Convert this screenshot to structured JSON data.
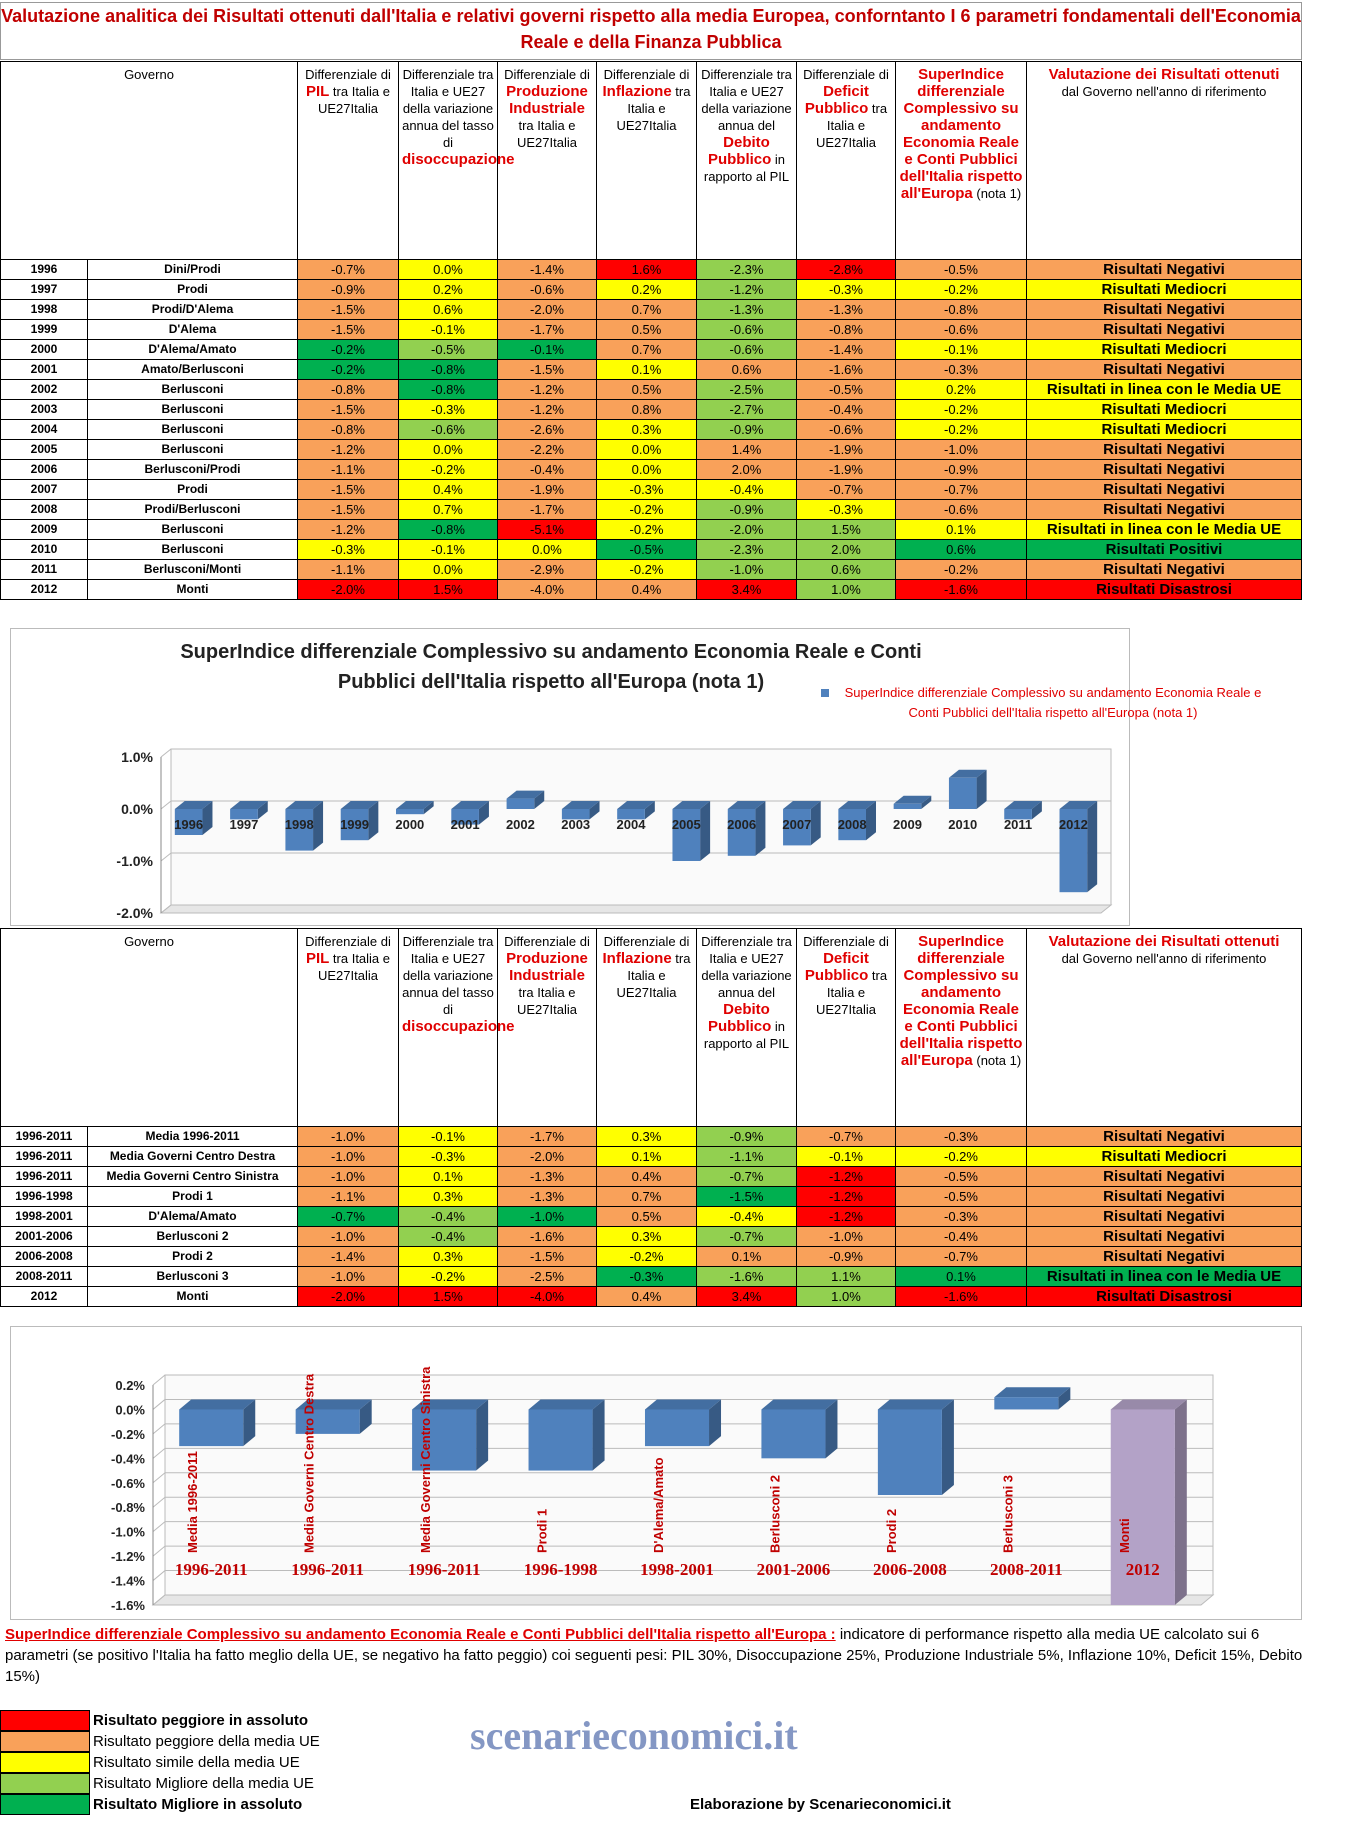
{
  "title": "Valutazione analitica dei Risultati ottenuti dall'Italia e relativi governi rispetto alla media Europea, conforntanto I 6 parametri fondamentali dell'Economia Reale e della Finanza Pubblica",
  "columns": [
    [
      {
        "text": "Governo"
      }
    ],
    [
      {
        "text": "Differenziale di "
      },
      {
        "text": "PIL",
        "color": "#e00000"
      },
      {
        "text": " tra Italia e UE27Italia"
      }
    ],
    [
      {
        "text": "Differenziale tra Italia e UE27 della variazione annua del tasso di "
      },
      {
        "text": "disoccupazione",
        "color": "#e00000"
      }
    ],
    [
      {
        "text": "Differenziale di "
      },
      {
        "text": "Produzione Industriale",
        "color": "#e00000"
      },
      {
        "text": " tra Italia e UE27Italia"
      }
    ],
    [
      {
        "text": "Differenziale di "
      },
      {
        "text": "Inflazione",
        "color": "#e00000"
      },
      {
        "text": " tra Italia e UE27Italia"
      }
    ],
    [
      {
        "text": "Differenziale tra Italia e UE27 della variazione annua del "
      },
      {
        "text": "Debito Pubblico",
        "color": "#e00000"
      },
      {
        "text": " in rapporto al PIL"
      }
    ],
    [
      {
        "text": "Differenziale di "
      },
      {
        "text": "Deficit Pubblico",
        "color": "#e00000"
      },
      {
        "text": " tra Italia e UE27Italia"
      }
    ],
    [
      {
        "text": "SuperIndice differenziale Complessivo su andamento Economia Reale e Conti Pubblici dell'Italia rispetto all'Europa",
        "color": "#e00000"
      },
      {
        "text": "  (nota 1)"
      }
    ],
    [
      {
        "text": "Valutazione dei Risultati ottenuti",
        "color": "#e00000"
      },
      {
        "text": "dal Governo nell'anno di riferimento"
      }
    ]
  ],
  "table1": [
    {
      "year": "1996",
      "gov": "Dini/Prodi",
      "cells": [
        "-0.7%",
        "0.0%",
        "-1.4%",
        "1.6%",
        "-2.3%",
        "-2.8%",
        "-0.5%",
        "Risultati Negativi"
      ],
      "colors": [
        "#f9a15a",
        "#ffff00",
        "#f9a15a",
        "#ff0000",
        "#92d050",
        "#ff0000",
        "#f9a15a",
        "#f9a15a"
      ]
    },
    {
      "year": "1997",
      "gov": "Prodi",
      "cells": [
        "-0.9%",
        "0.2%",
        "-0.6%",
        "0.2%",
        "-1.2%",
        "-0.3%",
        "-0.2%",
        "Risultati Mediocri"
      ],
      "colors": [
        "#f9a15a",
        "#ffff00",
        "#f9a15a",
        "#ffff00",
        "#92d050",
        "#ffff00",
        "#ffff00",
        "#ffff00"
      ]
    },
    {
      "year": "1998",
      "gov": "Prodi/D'Alema",
      "cells": [
        "-1.5%",
        "0.6%",
        "-2.0%",
        "0.7%",
        "-1.3%",
        "-1.3%",
        "-0.8%",
        "Risultati Negativi"
      ],
      "colors": [
        "#f9a15a",
        "#ffff00",
        "#f9a15a",
        "#f9a15a",
        "#92d050",
        "#f9a15a",
        "#f9a15a",
        "#f9a15a"
      ]
    },
    {
      "year": "1999",
      "gov": "D'Alema",
      "cells": [
        "-1.5%",
        "-0.1%",
        "-1.7%",
        "0.5%",
        "-0.6%",
        "-0.8%",
        "-0.6%",
        "Risultati Negativi"
      ],
      "colors": [
        "#f9a15a",
        "#ffff00",
        "#f9a15a",
        "#f9a15a",
        "#92d050",
        "#f9a15a",
        "#f9a15a",
        "#f9a15a"
      ]
    },
    {
      "year": "2000",
      "gov": "D'Alema/Amato",
      "cells": [
        "-0.2%",
        "-0.5%",
        "-0.1%",
        "0.7%",
        "-0.6%",
        "-1.4%",
        "-0.1%",
        "Risultati Mediocri"
      ],
      "colors": [
        "#00b050",
        "#92d050",
        "#00b050",
        "#f9a15a",
        "#92d050",
        "#f9a15a",
        "#ffff00",
        "#ffff00"
      ]
    },
    {
      "year": "2001",
      "gov": "Amato/Berlusconi",
      "cells": [
        "-0.2%",
        "-0.8%",
        "-1.5%",
        "0.1%",
        "0.6%",
        "-1.6%",
        "-0.3%",
        "Risultati Negativi"
      ],
      "colors": [
        "#00b050",
        "#00b050",
        "#f9a15a",
        "#ffff00",
        "#f9a15a",
        "#f9a15a",
        "#f9a15a",
        "#f9a15a"
      ]
    },
    {
      "year": "2002",
      "gov": "Berlusconi",
      "cells": [
        "-0.8%",
        "-0.8%",
        "-1.2%",
        "0.5%",
        "-2.5%",
        "-0.5%",
        "0.2%",
        "Risultati in linea con le Media UE"
      ],
      "colors": [
        "#f9a15a",
        "#00b050",
        "#f9a15a",
        "#f9a15a",
        "#92d050",
        "#f9a15a",
        "#ffff00",
        "#ffff00"
      ]
    },
    {
      "year": "2003",
      "gov": "Berlusconi",
      "cells": [
        "-1.5%",
        "-0.3%",
        "-1.2%",
        "0.8%",
        "-2.7%",
        "-0.4%",
        "-0.2%",
        "Risultati Mediocri"
      ],
      "colors": [
        "#f9a15a",
        "#ffff00",
        "#f9a15a",
        "#f9a15a",
        "#92d050",
        "#f9a15a",
        "#ffff00",
        "#ffff00"
      ]
    },
    {
      "year": "2004",
      "gov": "Berlusconi",
      "cells": [
        "-0.8%",
        "-0.6%",
        "-2.6%",
        "0.3%",
        "-0.9%",
        "-0.6%",
        "-0.2%",
        "Risultati Mediocri"
      ],
      "colors": [
        "#f9a15a",
        "#92d050",
        "#f9a15a",
        "#ffff00",
        "#92d050",
        "#f9a15a",
        "#ffff00",
        "#ffff00"
      ]
    },
    {
      "year": "2005",
      "gov": "Berlusconi",
      "cells": [
        "-1.2%",
        "0.0%",
        "-2.2%",
        "0.0%",
        "1.4%",
        "-1.9%",
        "-1.0%",
        "Risultati Negativi"
      ],
      "colors": [
        "#f9a15a",
        "#ffff00",
        "#f9a15a",
        "#ffff00",
        "#f9a15a",
        "#f9a15a",
        "#f9a15a",
        "#f9a15a"
      ]
    },
    {
      "year": "2006",
      "gov": "Berlusconi/Prodi",
      "cells": [
        "-1.1%",
        "-0.2%",
        "-0.4%",
        "0.0%",
        "2.0%",
        "-1.9%",
        "-0.9%",
        "Risultati Negativi"
      ],
      "colors": [
        "#f9a15a",
        "#ffff00",
        "#f9a15a",
        "#ffff00",
        "#f9a15a",
        "#f9a15a",
        "#f9a15a",
        "#f9a15a"
      ]
    },
    {
      "year": "2007",
      "gov": "Prodi",
      "cells": [
        "-1.5%",
        "0.4%",
        "-1.9%",
        "-0.3%",
        "-0.4%",
        "-0.7%",
        "-0.7%",
        "Risultati Negativi"
      ],
      "colors": [
        "#f9a15a",
        "#ffff00",
        "#f9a15a",
        "#ffff00",
        "#ffff00",
        "#f9a15a",
        "#f9a15a",
        "#f9a15a"
      ]
    },
    {
      "year": "2008",
      "gov": "Prodi/Berlusconi",
      "cells": [
        "-1.5%",
        "0.7%",
        "-1.7%",
        "-0.2%",
        "-0.9%",
        "-0.3%",
        "-0.6%",
        "Risultati Negativi"
      ],
      "colors": [
        "#f9a15a",
        "#ffff00",
        "#f9a15a",
        "#ffff00",
        "#92d050",
        "#ffff00",
        "#f9a15a",
        "#f9a15a"
      ]
    },
    {
      "year": "2009",
      "gov": "Berlusconi",
      "cells": [
        "-1.2%",
        "-0.8%",
        "-5.1%",
        "-0.2%",
        "-2.0%",
        "1.5%",
        "0.1%",
        "Risultati in linea con le Media UE"
      ],
      "colors": [
        "#f9a15a",
        "#00b050",
        "#ff0000",
        "#ffff00",
        "#92d050",
        "#92d050",
        "#ffff00",
        "#ffff00"
      ]
    },
    {
      "year": "2010",
      "gov": "Berlusconi",
      "cells": [
        "-0.3%",
        "-0.1%",
        "0.0%",
        "-0.5%",
        "-2.3%",
        "2.0%",
        "0.6%",
        "Risultati Positivi"
      ],
      "colors": [
        "#ffff00",
        "#ffff00",
        "#ffff00",
        "#00b050",
        "#92d050",
        "#92d050",
        "#00b050",
        "#00b050"
      ]
    },
    {
      "year": "2011",
      "gov": "Berlusconi/Monti",
      "cells": [
        "-1.1%",
        "0.0%",
        "-2.9%",
        "-0.2%",
        "-1.0%",
        "0.6%",
        "-0.2%",
        "Risultati Negativi"
      ],
      "colors": [
        "#f9a15a",
        "#ffff00",
        "#f9a15a",
        "#ffff00",
        "#92d050",
        "#92d050",
        "#f9a15a",
        "#f9a15a"
      ]
    },
    {
      "year": "2012",
      "gov": "Monti",
      "cells": [
        "-2.0%",
        "1.5%",
        "-4.0%",
        "0.4%",
        "3.4%",
        "1.0%",
        "-1.6%",
        "Risultati Disastrosi"
      ],
      "colors": [
        "#ff0000",
        "#ff0000",
        "#f9a15a",
        "#f9a15a",
        "#ff0000",
        "#92d050",
        "#ff0000",
        "#ff0000"
      ]
    }
  ],
  "table2": [
    {
      "year": "1996-2011",
      "gov": "Media 1996-2011",
      "cells": [
        "-1.0%",
        "-0.1%",
        "-1.7%",
        "0.3%",
        "-0.9%",
        "-0.7%",
        "-0.3%",
        "Risultati Negativi"
      ],
      "colors": [
        "#f9a15a",
        "#ffff00",
        "#f9a15a",
        "#ffff00",
        "#92d050",
        "#f9a15a",
        "#f9a15a",
        "#f9a15a"
      ]
    },
    {
      "year": "1996-2011",
      "gov": "Media Governi Centro Destra",
      "cells": [
        "-1.0%",
        "-0.3%",
        "-2.0%",
        "0.1%",
        "-1.1%",
        "-0.1%",
        "-0.2%",
        "Risultati Mediocri"
      ],
      "colors": [
        "#f9a15a",
        "#ffff00",
        "#f9a15a",
        "#ffff00",
        "#92d050",
        "#ffff00",
        "#ffff00",
        "#ffff00"
      ]
    },
    {
      "year": "1996-2011",
      "gov": "Media Governi Centro Sinistra",
      "cells": [
        "-1.0%",
        "0.1%",
        "-1.3%",
        "0.4%",
        "-0.7%",
        "-1.2%",
        "-0.5%",
        "Risultati Negativi"
      ],
      "colors": [
        "#f9a15a",
        "#ffff00",
        "#f9a15a",
        "#f9a15a",
        "#92d050",
        "#ff0000",
        "#f9a15a",
        "#f9a15a"
      ]
    },
    {
      "year": "1996-1998",
      "gov": "Prodi 1",
      "cells": [
        "-1.1%",
        "0.3%",
        "-1.3%",
        "0.7%",
        "-1.5%",
        "-1.2%",
        "-0.5%",
        "Risultati Negativi"
      ],
      "colors": [
        "#f9a15a",
        "#ffff00",
        "#f9a15a",
        "#f9a15a",
        "#00b050",
        "#ff0000",
        "#f9a15a",
        "#f9a15a"
      ]
    },
    {
      "year": "1998-2001",
      "gov": "D'Alema/Amato",
      "cells": [
        "-0.7%",
        "-0.4%",
        "-1.0%",
        "0.5%",
        "-0.4%",
        "-1.2%",
        "-0.3%",
        "Risultati Negativi"
      ],
      "colors": [
        "#00b050",
        "#92d050",
        "#00b050",
        "#f9a15a",
        "#ffff00",
        "#ff0000",
        "#f9a15a",
        "#f9a15a"
      ]
    },
    {
      "year": "2001-2006",
      "gov": "Berlusconi 2",
      "cells": [
        "-1.0%",
        "-0.4%",
        "-1.6%",
        "0.3%",
        "-0.7%",
        "-1.0%",
        "-0.4%",
        "Risultati Negativi"
      ],
      "colors": [
        "#f9a15a",
        "#92d050",
        "#f9a15a",
        "#ffff00",
        "#92d050",
        "#f9a15a",
        "#f9a15a",
        "#f9a15a"
      ]
    },
    {
      "year": "2006-2008",
      "gov": "Prodi 2",
      "cells": [
        "-1.4%",
        "0.3%",
        "-1.5%",
        "-0.2%",
        "0.1%",
        "-0.9%",
        "-0.7%",
        "Risultati Negativi"
      ],
      "colors": [
        "#f9a15a",
        "#ffff00",
        "#f9a15a",
        "#ffff00",
        "#f9a15a",
        "#f9a15a",
        "#f9a15a",
        "#f9a15a"
      ]
    },
    {
      "year": "2008-2011",
      "gov": "Berlusconi 3",
      "cells": [
        "-1.0%",
        "-0.2%",
        "-2.5%",
        "-0.3%",
        "-1.6%",
        "1.1%",
        "0.1%",
        "Risultati in linea con le Media UE"
      ],
      "colors": [
        "#f9a15a",
        "#ffff00",
        "#f9a15a",
        "#00b050",
        "#92d050",
        "#92d050",
        "#00b050",
        "#00b050"
      ]
    },
    {
      "year": "2012",
      "gov": "Monti",
      "cells": [
        "-2.0%",
        "1.5%",
        "-4.0%",
        "0.4%",
        "3.4%",
        "1.0%",
        "-1.6%",
        "Risultati Disastrosi"
      ],
      "colors": [
        "#ff0000",
        "#ff0000",
        "#ff0000",
        "#f9a15a",
        "#ff0000",
        "#92d050",
        "#ff0000",
        "#ff0000"
      ]
    }
  ],
  "chart_data": [
    {
      "type": "bar",
      "title": "SuperIndice differenziale Complessivo su andamento Economia Reale e Conti Pubblici dell'Italia rispetto all'Europa  (nota 1)",
      "categories": [
        "1996",
        "1997",
        "1998",
        "1999",
        "2000",
        "2001",
        "2002",
        "2003",
        "2004",
        "2005",
        "2006",
        "2007",
        "2008",
        "2009",
        "2010",
        "2011",
        "2012"
      ],
      "series": [
        {
          "name": "SuperIndice differenziale Complessivo su andamento Economia Reale e Conti Pubblici dell'Italia rispetto all'Europa  (nota 1)",
          "color": "#4f81bd",
          "values": [
            -0.5,
            -0.2,
            -0.8,
            -0.6,
            -0.1,
            -0.3,
            0.2,
            -0.2,
            -0.2,
            -1.0,
            -0.9,
            -0.7,
            -0.6,
            0.1,
            0.6,
            -0.2,
            -1.6
          ]
        }
      ],
      "ylim": [
        -2,
        1
      ],
      "yticks": [
        {
          "value": 1,
          "label": "1.0%"
        },
        {
          "value": 0,
          "label": "0.0%"
        },
        {
          "value": -1,
          "label": "-1.0%"
        },
        {
          "value": -2,
          "label": "-2.0%"
        }
      ],
      "grid": true,
      "legend": "top-right"
    },
    {
      "type": "bar",
      "categories": [
        "Media 1996-2011",
        "Media Governi Centro Destra",
        "Media Governi Centro Sinistra",
        "Prodi 1",
        "D'Alema/Amato",
        "Berlusconi 2",
        "Prodi 2",
        "Berlusconi 3",
        "Monti"
      ],
      "periods": [
        "1996-2011",
        "1996-2011",
        "1996-2011",
        "1996-1998",
        "1998-2001",
        "2001-2006",
        "2006-2008",
        "2008-2011",
        "2012"
      ],
      "values": [
        -0.3,
        -0.2,
        -0.5,
        -0.5,
        -0.3,
        -0.4,
        -0.7,
        0.1,
        -1.6
      ],
      "colors": [
        "#4f81bd",
        "#4f81bd",
        "#4f81bd",
        "#4f81bd",
        "#4f81bd",
        "#4f81bd",
        "#4f81bd",
        "#4f81bd",
        "#b3a2c7"
      ],
      "ylim": [
        -1.6,
        0.2
      ],
      "yticks": [
        {
          "value": 0.2,
          "label": "0.2%"
        },
        {
          "value": 0,
          "label": "0.0%"
        },
        {
          "value": -0.2,
          "label": "-0.2%"
        },
        {
          "value": -0.4,
          "label": "-0.4%"
        },
        {
          "value": -0.6,
          "label": "-0.6%"
        },
        {
          "value": -0.8,
          "label": "-0.8%"
        },
        {
          "value": -1,
          "label": "-1.0%"
        },
        {
          "value": -1.2,
          "label": "-1.2%"
        },
        {
          "value": -1.4,
          "label": "-1.4%"
        },
        {
          "value": -1.6,
          "label": "-1.6%"
        }
      ],
      "grid": true
    }
  ],
  "note": {
    "term": "SuperIndice differenziale Complessivo su andamento Economia Reale e Conti Pubblici dell'Italia rispetto all'Europa :",
    "text": " indicatore di performance rispetto alla media UE calcolato sui 6 parametri (se positivo l'Italia ha fatto meglio della UE, se negativo ha fatto peggio) coi seguenti pesi: PIL 30%, Disoccupazione 25%, Produzione Industriale 5%, Inflazione 10%, Deficit 15%, Debito 15%)"
  },
  "legend": [
    {
      "label": "Risultato peggiore in assoluto",
      "color": "#ff0000"
    },
    {
      "label": "Risultato peggiore della media UE",
      "color": "#f9a15a"
    },
    {
      "label": "Risultato simile della media UE",
      "color": "#ffff00"
    },
    {
      "label": "Risultato Migliore della media UE",
      "color": "#92d050"
    },
    {
      "label": "Risultato Migliore in assoluto",
      "color": "#00b050"
    }
  ],
  "watermark": "scenarieconomici.it",
  "credit": "Elaborazione by Scenarieconomici.it"
}
